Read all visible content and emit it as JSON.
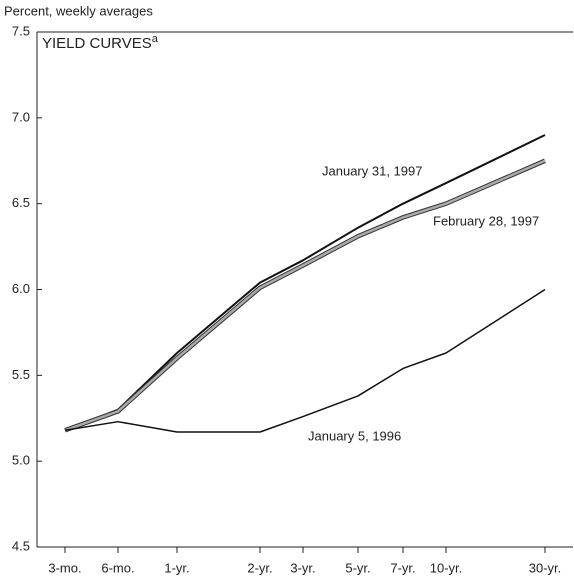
{
  "chart_data": {
    "type": "line",
    "title": "YIELD CURVES",
    "title_superscript": "a",
    "y_axis_label": "Percent, weekly averages",
    "categories": [
      "3-mo.",
      "6-mo.",
      "1-yr.",
      "2-yr.",
      "3-yr.",
      "5-yr.",
      "7-yr.",
      "10-yr.",
      "30-yr."
    ],
    "series": [
      {
        "name": "January 31, 1997",
        "color": "#111111",
        "values": [
          5.18,
          5.3,
          5.63,
          6.04,
          6.17,
          6.36,
          6.5,
          6.62,
          6.9
        ]
      },
      {
        "name": "February 28, 1997",
        "color": "#aaaaaa",
        "values": [
          5.18,
          5.29,
          5.6,
          6.01,
          6.14,
          6.31,
          6.42,
          6.5,
          6.75
        ]
      },
      {
        "name": "January 5, 1996",
        "color": "#111111",
        "values": [
          5.18,
          5.23,
          5.17,
          5.17,
          5.26,
          5.38,
          5.54,
          5.63,
          6.0
        ]
      }
    ],
    "ylim": [
      4.5,
      7.5
    ],
    "yticks": [
      4.5,
      {
        "value": 5.0,
        "label": "5.0"
      },
      5.5,
      {
        "value": 6.0,
        "label": "6.0"
      },
      6.5,
      {
        "value": 7.0,
        "label": "7.0"
      },
      7.5
    ]
  }
}
